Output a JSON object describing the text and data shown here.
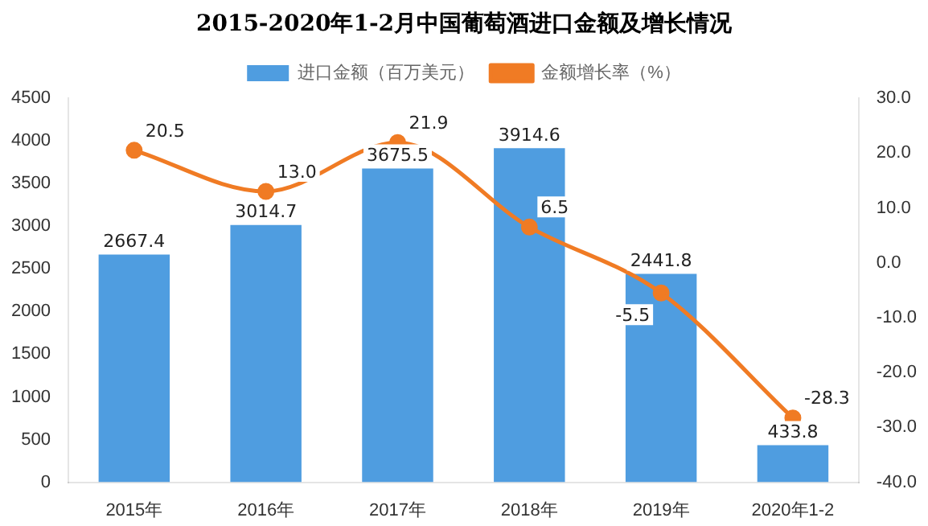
{
  "chart_data": {
    "type": "bar",
    "title": "2015-2020年1-2月中国葡萄酒进口金额及增长情况",
    "categories": [
      "2015年",
      "2016年",
      "2017年",
      "2018年",
      "2019年",
      "2020年1-2"
    ],
    "series": [
      {
        "name": "进口金额（百万美元）",
        "type": "bar",
        "color": "#4f9de0",
        "values": [
          2667.4,
          3014.7,
          3675.5,
          3914.6,
          2441.8,
          433.8
        ],
        "value_labels": [
          "2667.4",
          "3014.7",
          "3675.5",
          "3914.6",
          "2441.8",
          "433.8"
        ]
      },
      {
        "name": "金额增长率（%）",
        "type": "line",
        "axis": "y2",
        "color": "#f07b24",
        "values": [
          20.5,
          13.0,
          21.9,
          6.5,
          -5.5,
          -28.3
        ],
        "value_labels": [
          "20.5",
          "13.0",
          "21.9",
          "6.5",
          "-5.5",
          "-28.3"
        ]
      }
    ],
    "ylim": [
      0,
      4500
    ],
    "yticks": [
      0,
      500,
      1000,
      1500,
      2000,
      2500,
      3000,
      3500,
      4000,
      4500
    ],
    "y2lim": [
      -40,
      30
    ],
    "y2ticks": [
      {
        "value": -40,
        "label": "-40.0"
      },
      {
        "value": -30,
        "label": "-30.0"
      },
      {
        "value": -20,
        "label": "-20.0"
      },
      {
        "value": -10,
        "label": "-10.0"
      },
      {
        "value": 0,
        "label": "0.0"
      },
      {
        "value": 10,
        "label": "10.0"
      },
      {
        "value": 20,
        "label": "20.0"
      },
      {
        "value": 30,
        "label": "30.0"
      }
    ],
    "legend": "top",
    "grid": false,
    "marker": "circle",
    "line_style": "solid"
  }
}
